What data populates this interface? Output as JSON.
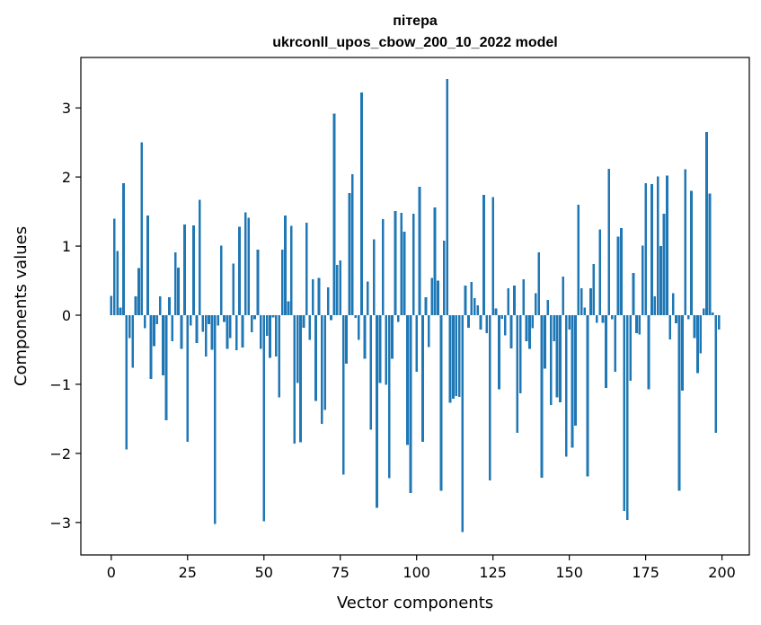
{
  "chart_data": {
    "type": "bar",
    "title": "пітера",
    "subtitle": "ukrconll_upos_cbow_200_10_2022 model",
    "xlabel": "Vector components",
    "ylabel": "Components values",
    "xlim": [
      -9.95,
      208.95
    ],
    "ylim": [
      -3.47,
      3.73
    ],
    "xticks": [
      0,
      25,
      50,
      75,
      100,
      125,
      150,
      175,
      200
    ],
    "yticks": [
      -3,
      -2,
      -1,
      0,
      1,
      2,
      3
    ],
    "ytick_labels": [
      "−3",
      "−2",
      "−1",
      "0",
      "1",
      "2",
      "3"
    ],
    "bar_color": "#1f77b4",
    "grid": false,
    "x": [
      0,
      1,
      2,
      3,
      4,
      5,
      6,
      7,
      8,
      9,
      10,
      11,
      12,
      13,
      14,
      15,
      16,
      17,
      18,
      19,
      20,
      21,
      22,
      23,
      24,
      25,
      26,
      27,
      28,
      29,
      30,
      31,
      32,
      33,
      34,
      35,
      36,
      37,
      38,
      39,
      40,
      41,
      42,
      43,
      44,
      45,
      46,
      47,
      48,
      49,
      50,
      51,
      52,
      53,
      54,
      55,
      56,
      57,
      58,
      59,
      60,
      61,
      62,
      63,
      64,
      65,
      66,
      67,
      68,
      69,
      70,
      71,
      72,
      73,
      74,
      75,
      76,
      77,
      78,
      79,
      80,
      81,
      82,
      83,
      84,
      85,
      86,
      87,
      88,
      89,
      90,
      91,
      92,
      93,
      94,
      95,
      96,
      97,
      98,
      99,
      100,
      101,
      102,
      103,
      104,
      105,
      106,
      107,
      108,
      109,
      110,
      111,
      112,
      113,
      114,
      115,
      116,
      117,
      118,
      119,
      120,
      121,
      122,
      123,
      124,
      125,
      126,
      127,
      128,
      129,
      130,
      131,
      132,
      133,
      134,
      135,
      136,
      137,
      138,
      139,
      140,
      141,
      142,
      143,
      144,
      145,
      146,
      147,
      148,
      149,
      150,
      151,
      152,
      153,
      154,
      155,
      156,
      157,
      158,
      159,
      160,
      161,
      162,
      163,
      164,
      165,
      166,
      167,
      168,
      169,
      170,
      171,
      172,
      173,
      174,
      175,
      176,
      177,
      178,
      179,
      180,
      181,
      182,
      183,
      184,
      185,
      186,
      187,
      188,
      189,
      190,
      191,
      192,
      193,
      194,
      195,
      196,
      197,
      198,
      199
    ],
    "values": [
      0.28,
      1.4,
      0.93,
      0.11,
      1.91,
      -1.94,
      -0.33,
      -0.76,
      0.27,
      0.68,
      2.5,
      -0.19,
      1.44,
      -0.92,
      -0.45,
      -0.13,
      0.27,
      -0.87,
      -1.52,
      0.26,
      -0.38,
      0.91,
      0.69,
      -0.49,
      1.31,
      -1.83,
      -0.15,
      1.3,
      -0.4,
      1.67,
      -0.24,
      -0.6,
      -0.13,
      -0.5,
      -3.02,
      -0.15,
      1.01,
      -0.1,
      -0.49,
      -0.33,
      0.75,
      -0.51,
      1.28,
      -0.47,
      1.49,
      1.41,
      -0.25,
      -0.06,
      0.95,
      -0.49,
      -2.98,
      -0.3,
      -0.62,
      -0.03,
      -0.6,
      -1.19,
      0.95,
      1.44,
      0.2,
      1.29,
      -1.86,
      -0.98,
      -1.84,
      -0.18,
      1.34,
      -0.36,
      0.52,
      -1.24,
      0.54,
      -1.57,
      -1.37,
      0.4,
      -0.07,
      2.92,
      0.73,
      0.79,
      -2.31,
      -0.7,
      1.77,
      2.04,
      -0.04,
      -0.36,
      3.22,
      -0.63,
      0.49,
      -1.66,
      1.1,
      -2.79,
      -0.98,
      1.39,
      -1.01,
      -2.36,
      -0.63,
      1.51,
      -0.1,
      1.48,
      1.21,
      -1.88,
      -2.57,
      1.47,
      -0.82,
      1.86,
      -1.83,
      0.26,
      -0.46,
      0.54,
      1.56,
      0.5,
      -2.54,
      1.08,
      3.42,
      -1.27,
      -1.21,
      -1.17,
      -1.18,
      -3.14,
      0.43,
      -0.18,
      0.48,
      0.25,
      0.14,
      -0.21,
      1.74,
      -0.26,
      -2.39,
      1.71,
      0.1,
      -1.07,
      -0.05,
      -0.29,
      0.39,
      -0.48,
      0.43,
      -1.7,
      -1.13,
      0.52,
      -0.38,
      -0.49,
      -0.19,
      0.32,
      0.91,
      -2.35,
      -0.77,
      0.22,
      -1.3,
      -0.38,
      -1.19,
      -1.26,
      0.56,
      -2.05,
      -0.21,
      -1.92,
      -1.6,
      1.6,
      0.39,
      0.11,
      -2.33,
      0.39,
      0.74,
      -0.11,
      1.24,
      -0.11,
      -1.05,
      2.12,
      -0.06,
      -0.82,
      1.14,
      1.26,
      -2.83,
      -2.96,
      -0.95,
      0.61,
      -0.26,
      -0.28,
      1.01,
      1.91,
      -1.07,
      1.9,
      0.27,
      2.01,
      1.0,
      1.47,
      2.02,
      -0.35,
      0.32,
      -0.12,
      -2.54,
      -1.09,
      2.11,
      -0.06,
      1.8,
      -0.33,
      -0.84,
      -0.55,
      0.1,
      2.65,
      1.76,
      0.04,
      -1.7,
      -0.21
    ]
  }
}
